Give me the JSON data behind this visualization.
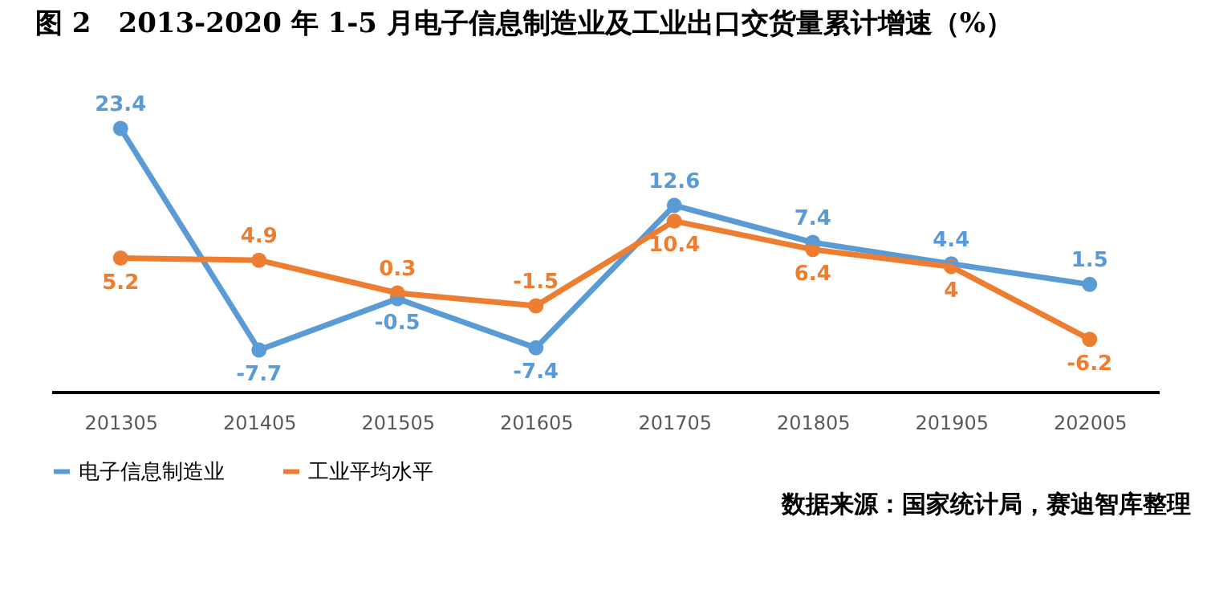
{
  "chart_data": {
    "type": "line",
    "title": "图 2　2013-2020 年 1-5 月电子信息制造业及工业出口交货量累计增速（%）",
    "categories": [
      "201305",
      "201405",
      "201505",
      "201605",
      "201705",
      "201805",
      "201905",
      "202005"
    ],
    "series": [
      {
        "name": "电子信息制造业",
        "color": "#5b9bd5",
        "values": [
          23.4,
          -7.7,
          -0.5,
          -7.4,
          12.6,
          7.4,
          4.4,
          1.5
        ]
      },
      {
        "name": "工业平均水平",
        "color": "#ed7d31",
        "values": [
          5.2,
          4.9,
          0.3,
          -1.5,
          10.4,
          6.4,
          4,
          -6.2
        ]
      }
    ],
    "data_labels": true,
    "marker": "circle",
    "grid": false,
    "legend": "bottom",
    "tick_labels": "x",
    "annotations": [
      "数据来源：国家统计局，赛迪智库整理"
    ]
  }
}
